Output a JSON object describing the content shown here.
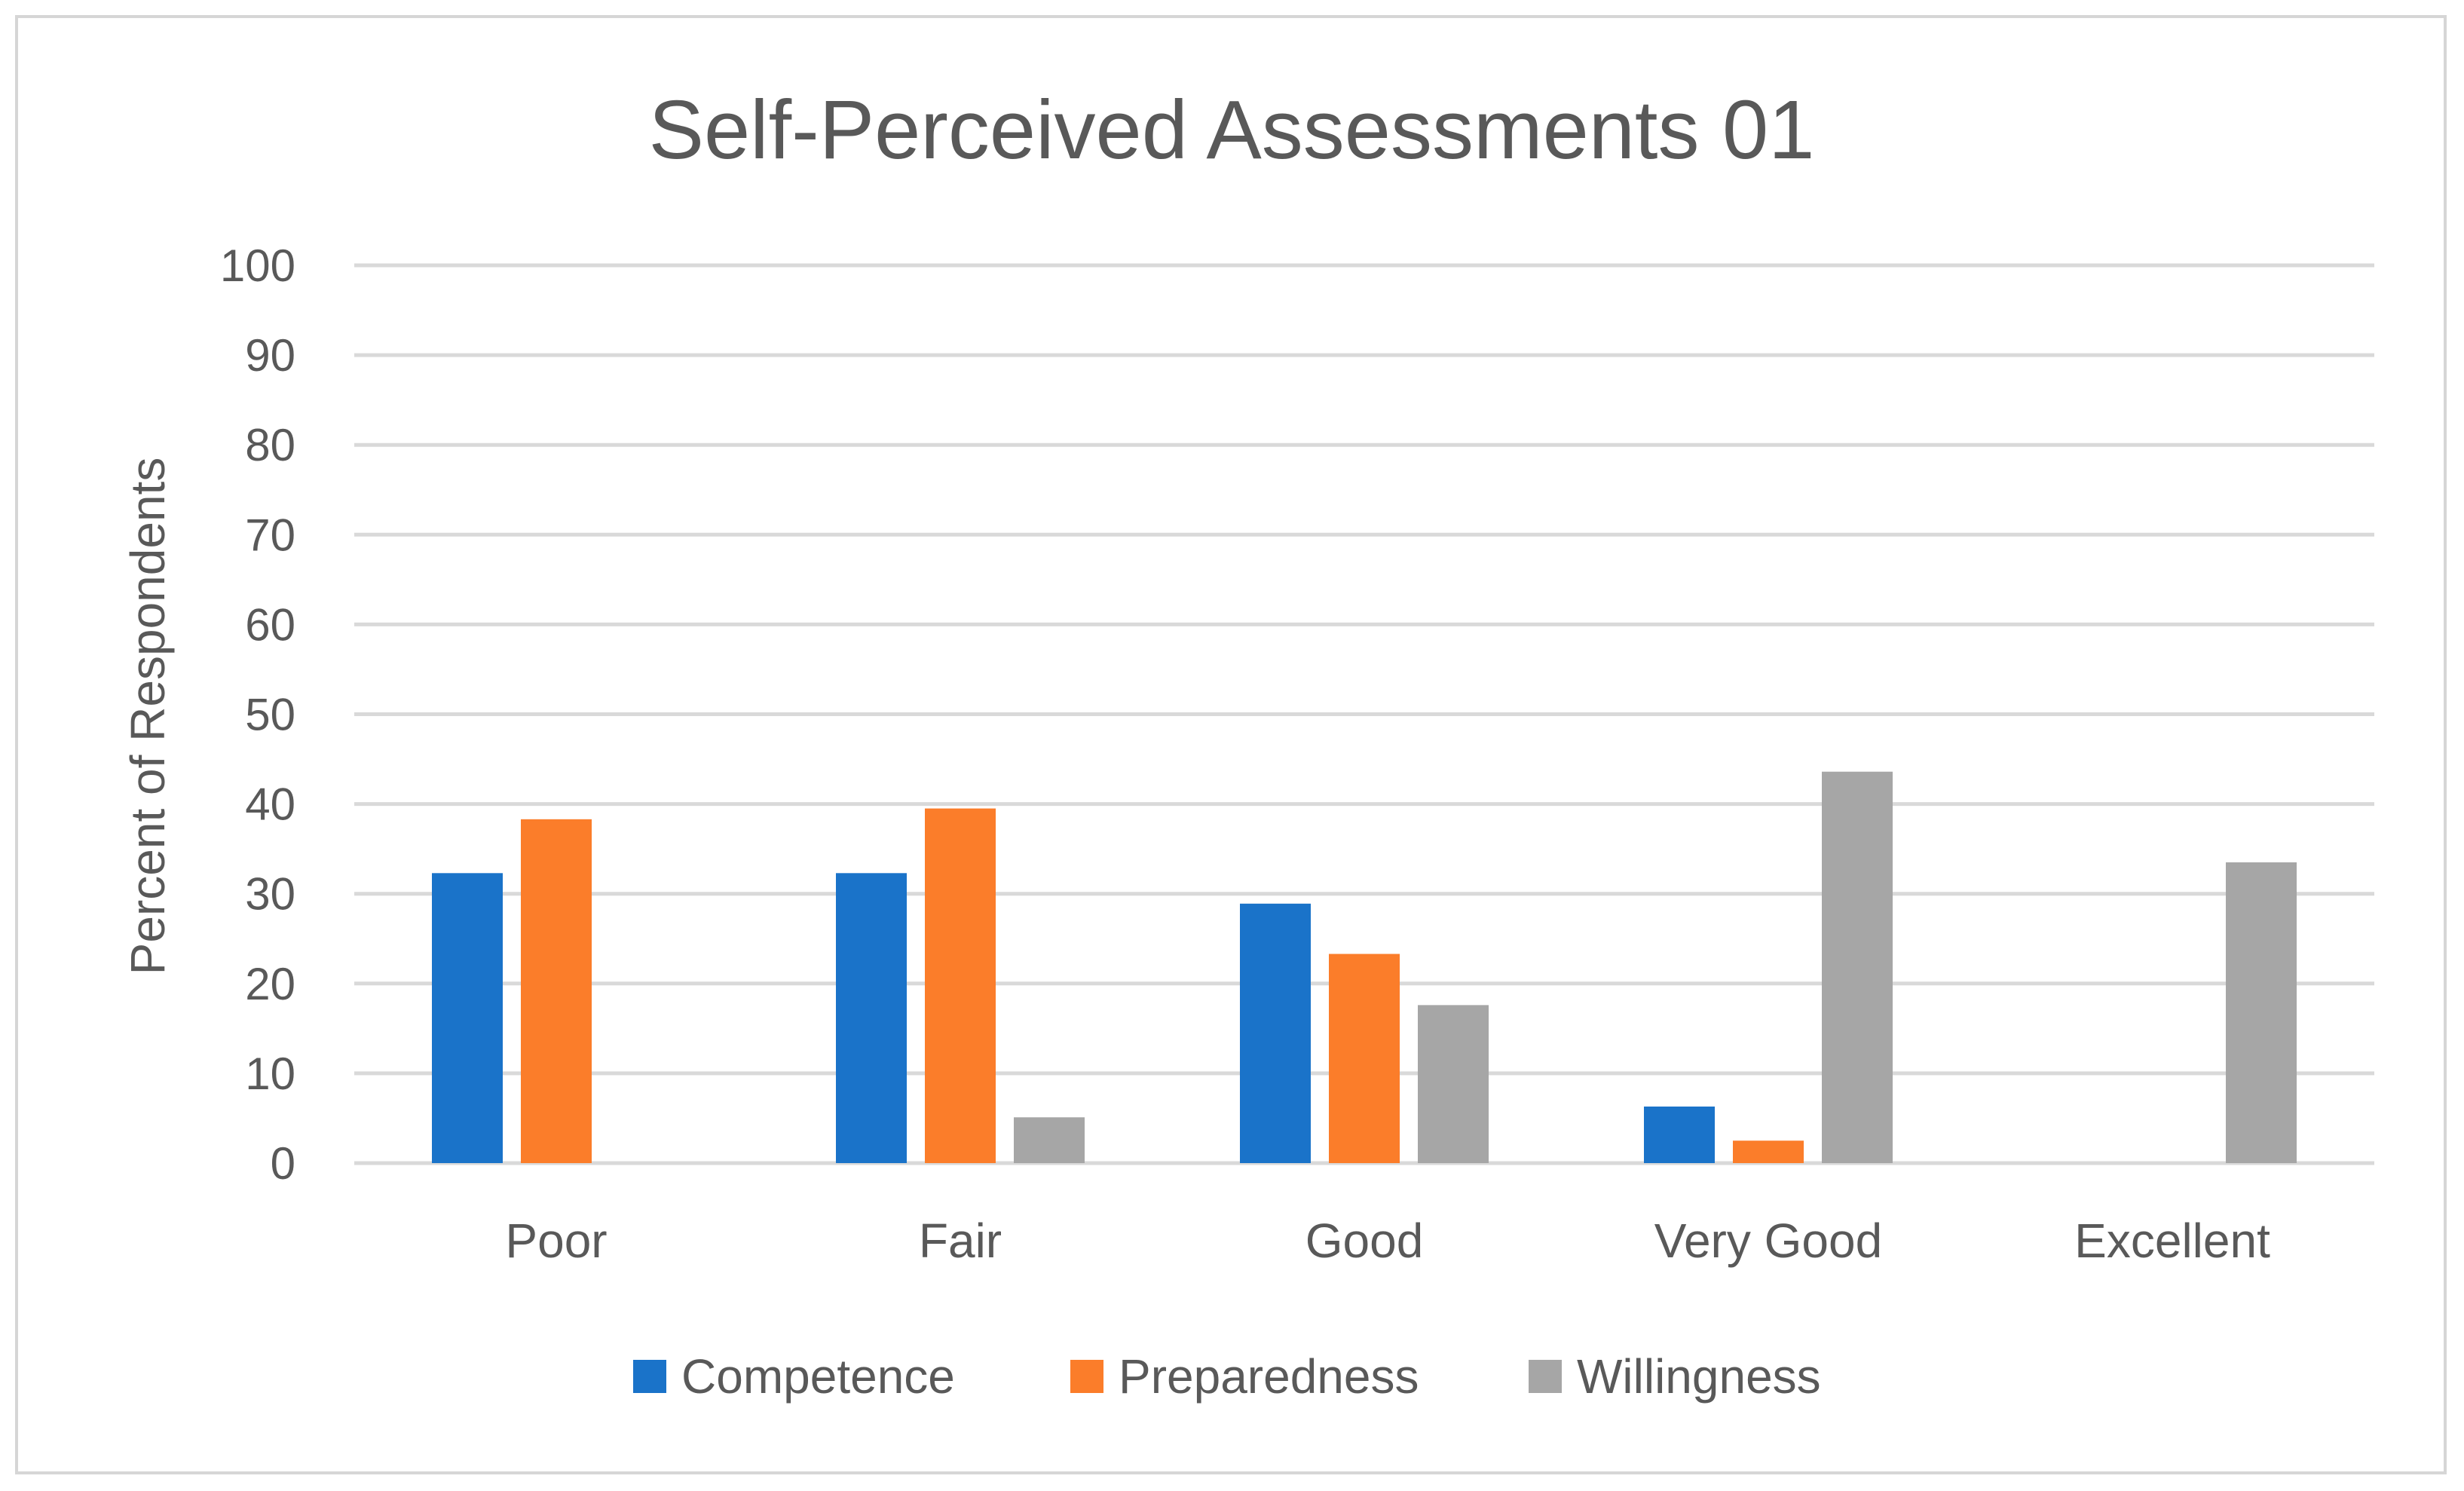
{
  "chart_data": {
    "type": "bar",
    "title": "Self-Perceived Assessments 01",
    "xlabel": "",
    "ylabel": "Percent of Respondents",
    "ylim": [
      0,
      100
    ],
    "yticks": [
      0,
      10,
      20,
      30,
      40,
      50,
      60,
      70,
      80,
      90,
      100
    ],
    "grid": true,
    "legend_position": "bottom",
    "categories": [
      "Poor",
      "Fair",
      "Good",
      "Very Good",
      "Excellent"
    ],
    "series": [
      {
        "name": "Competence",
        "color": "#1a73c9",
        "values": [
          32.3,
          32.3,
          28.9,
          6.3,
          0
        ]
      },
      {
        "name": "Preparedness",
        "color": "#fb7d2a",
        "values": [
          38.3,
          39.5,
          23.3,
          2.5,
          0
        ]
      },
      {
        "name": "Willingness",
        "color": "#a6a6a6",
        "values": [
          0,
          5.1,
          17.6,
          43.6,
          33.5
        ]
      }
    ]
  }
}
